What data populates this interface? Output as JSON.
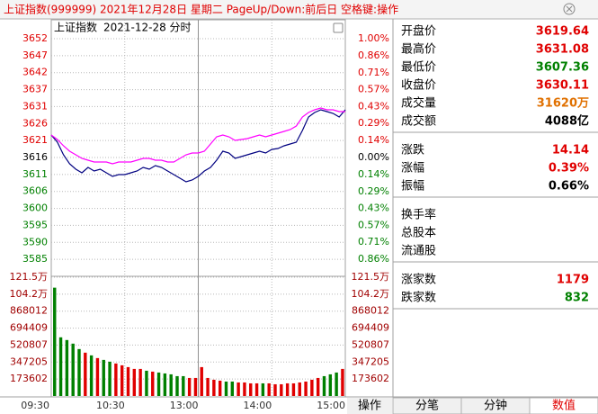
{
  "window_title": "上证指数(999999)  2021年12月28日 星期二  PageUp/Down:前后日  空格键:操作",
  "chart_data": [
    {
      "type": "line",
      "label": "上证指数",
      "date": "2021-12-28 分时",
      "x": [
        0,
        5,
        10,
        15,
        20,
        25,
        30,
        35,
        40,
        45,
        50,
        55,
        60,
        65,
        70,
        75,
        80,
        85,
        90,
        95,
        100,
        105,
        110,
        115,
        120,
        125,
        130,
        135,
        140,
        145,
        150,
        155,
        160,
        165,
        170,
        175,
        180,
        185,
        190,
        195,
        200,
        205,
        210,
        215,
        220,
        225,
        230,
        235,
        240
      ],
      "xlim": [
        0,
        240
      ],
      "xticks": [
        {
          "value": 0,
          "label": "09:30"
        },
        {
          "value": 60,
          "label": "10:30"
        },
        {
          "value": 120,
          "label": "13:00"
        },
        {
          "value": 180,
          "label": "14:00"
        },
        {
          "value": 240,
          "label": "15:00"
        }
      ],
      "ylim": [
        3579.81,
        3652.13
      ],
      "yticks": [
        {
          "value": 3652.13,
          "label": "3652"
        },
        {
          "value": 3646.96,
          "label": "3647"
        },
        {
          "value": 3641.8,
          "label": "3642"
        },
        {
          "value": 3636.63,
          "label": "3637"
        },
        {
          "value": 3631.47,
          "label": "3631"
        },
        {
          "value": 3626.3,
          "label": "3626"
        },
        {
          "value": 3621.14,
          "label": "3621"
        },
        {
          "value": 3615.97,
          "label": "3616"
        },
        {
          "value": 3610.8,
          "label": "3611"
        },
        {
          "value": 3605.64,
          "label": "3606"
        },
        {
          "value": 3600.47,
          "label": "3600"
        },
        {
          "value": 3595.31,
          "label": "3595"
        },
        {
          "value": 3590.14,
          "label": "3590"
        },
        {
          "value": 3584.98,
          "label": "3585"
        }
      ],
      "y2lim": [
        -1,
        1
      ],
      "y2ticks": [
        {
          "value": 1,
          "label": "1.00%"
        },
        {
          "value": 0.857,
          "label": "0.86%"
        },
        {
          "value": 0.714,
          "label": "0.71%"
        },
        {
          "value": 0.571,
          "label": "0.57%"
        },
        {
          "value": 0.429,
          "label": "0.43%"
        },
        {
          "value": 0.286,
          "label": "0.29%"
        },
        {
          "value": 0.143,
          "label": "0.14%"
        },
        {
          "value": 0,
          "label": "0.00%"
        },
        {
          "value": -0.143,
          "label": "0.14%"
        },
        {
          "value": -0.286,
          "label": "0.29%"
        },
        {
          "value": -0.429,
          "label": "0.43%"
        },
        {
          "value": -0.571,
          "label": "0.57%"
        },
        {
          "value": -0.714,
          "label": "0.71%"
        },
        {
          "value": -0.857,
          "label": "0.86%"
        }
      ],
      "series": [
        {
          "color": "#000080",
          "values": [
            3622.82,
            3620.63,
            3616.79,
            3614.05,
            3612.41,
            3611.31,
            3612.96,
            3611.86,
            3612.41,
            3611.31,
            3610.22,
            3610.77,
            3610.77,
            3611.31,
            3611.86,
            3612.96,
            3612.41,
            3613.5,
            3612.96,
            3611.86,
            3610.77,
            3609.67,
            3608.57,
            3609.12,
            3610.22,
            3611.86,
            3612.96,
            3615.15,
            3617.89,
            3617.34,
            3615.7,
            3616.24,
            3616.79,
            3617.34,
            3617.89,
            3617.34,
            3618.44,
            3618.71,
            3619.53,
            3620.08,
            3620.63,
            3624.19,
            3628.3,
            3629.67,
            3630.49,
            3629.94,
            3629.39,
            3628.3,
            3630.49
          ]
        },
        {
          "color": "#ff00ff",
          "values": [
            3622.82,
            3621.45,
            3619.53,
            3617.89,
            3616.79,
            3615.7,
            3615.15,
            3614.6,
            3614.6,
            3614.6,
            3614.05,
            3614.6,
            3614.6,
            3614.6,
            3615.15,
            3615.7,
            3615.7,
            3615.15,
            3615.15,
            3614.6,
            3614.6,
            3615.7,
            3616.79,
            3617.34,
            3617.34,
            3617.89,
            3620.08,
            3622.27,
            3622.82,
            3622.27,
            3621.17,
            3621.45,
            3621.72,
            3622.27,
            3622.82,
            3622.27,
            3622.82,
            3623.37,
            3623.91,
            3624.46,
            3625.56,
            3628.3,
            3629.67,
            3630.49,
            3631.03,
            3630.49,
            3630.49,
            3629.94,
            3629.94
          ]
        }
      ],
      "up_color": "#e00000",
      "down_color": "#008000",
      "flat_color": "#000000",
      "grid": true
    },
    {
      "type": "bar",
      "x": [
        0,
        5,
        10,
        15,
        20,
        25,
        30,
        35,
        40,
        45,
        50,
        55,
        60,
        65,
        70,
        75,
        80,
        85,
        90,
        95,
        100,
        105,
        110,
        115,
        120,
        125,
        130,
        135,
        140,
        145,
        150,
        155,
        160,
        165,
        170,
        175,
        180,
        185,
        190,
        195,
        200,
        205,
        210,
        215,
        220,
        225,
        230,
        235
      ],
      "xlim": [
        0,
        240
      ],
      "values": [
        1108080,
        600210,
        572508,
        535572,
        480168,
        443232,
        415530,
        387828,
        369360,
        350892,
        332424,
        313956,
        295488,
        277020,
        277020,
        258552,
        249318,
        240084,
        230850,
        221616,
        203148,
        203148,
        184680,
        184680,
        295488,
        184680,
        166212,
        156978,
        147744,
        147744,
        138510,
        138510,
        129276,
        129276,
        129276,
        129276,
        120042,
        120042,
        129276,
        129276,
        138510,
        147744,
        166212,
        184680,
        203148,
        221616,
        240084,
        277020
      ],
      "ylim": [
        0,
        1215216
      ],
      "yticks": [
        173602,
        347205,
        520807,
        694409,
        868012,
        {
          "value": 1041614,
          "label": "104.2万"
        },
        {
          "value": 1215216,
          "label": "121.5万"
        }
      ],
      "up_color": "#e00000",
      "down_color": "#008000",
      "tick_color": "#a00000",
      "grid": true
    }
  ],
  "quote_panel": [
    [
      {
        "label": "开盘价",
        "value": "3619.64",
        "color": "#e00000"
      },
      {
        "label": "最高价",
        "value": "3631.08",
        "color": "#e00000"
      },
      {
        "label": "最低价",
        "value": "3607.36",
        "color": "#008000"
      },
      {
        "label": "收盘价",
        "value": "3630.11",
        "color": "#e00000"
      },
      {
        "label": "成交量",
        "value": "31620万",
        "color": "#e07000"
      },
      {
        "label": "成交额",
        "value": "4088亿",
        "color": "#000000"
      }
    ],
    [
      {
        "label": "涨跌",
        "value": "14.14",
        "color": "#e00000"
      },
      {
        "label": "涨幅",
        "value": "0.39%",
        "color": "#e00000"
      },
      {
        "label": "振幅",
        "value": "0.66%",
        "color": "#000000"
      }
    ],
    [
      {
        "label": "换手率"
      },
      {
        "label": "总股本"
      },
      {
        "label": "流通股"
      }
    ],
    [
      {
        "label": "涨家数",
        "value": "1179",
        "color": "#e00000"
      },
      {
        "label": "跌家数",
        "value": "832",
        "color": "#008000"
      }
    ]
  ],
  "button": "操作",
  "tabs": [
    "分笔",
    "分钟",
    "数值"
  ],
  "active_tab": 2
}
